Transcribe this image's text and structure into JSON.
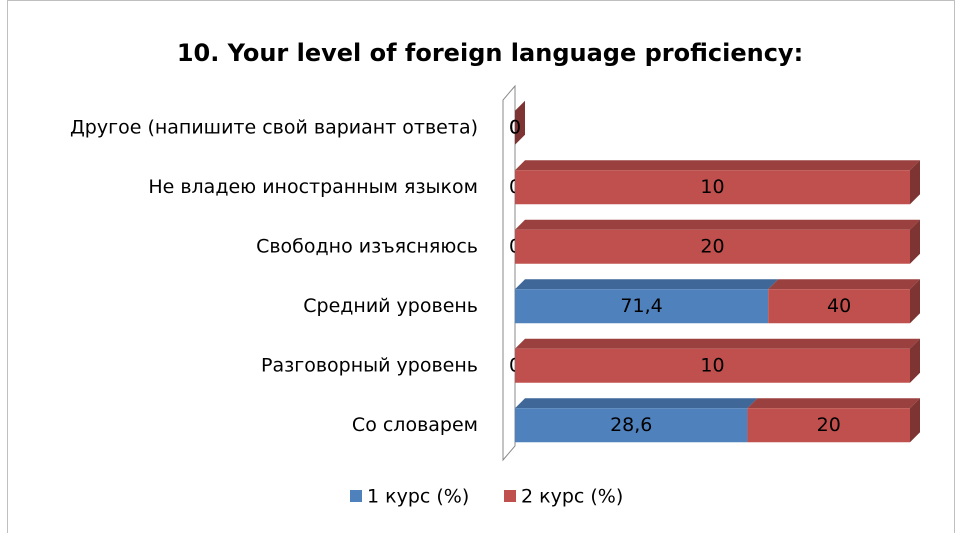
{
  "chart_data": {
    "type": "bar",
    "orientation": "horizontal",
    "stacked_percent": true,
    "three_d": true,
    "title": "10. Your level of foreign language proficiency:",
    "categories": [
      "Другое (напишите свой вариант ответа)",
      "Не владею иностранным языком",
      "Свободно изъясняюсь",
      "Средний уровень",
      "Разговорный уровень",
      "Со словарем"
    ],
    "series": [
      {
        "name": "1 курс (%)",
        "color": "#4f81bd",
        "values": [
          0,
          0,
          0,
          71.4,
          0,
          28.6
        ],
        "value_labels": [
          "0",
          "0",
          "0",
          "71,4",
          "0",
          "28,6"
        ]
      },
      {
        "name": "2 курс (%)",
        "color": "#c0504d",
        "values": [
          0,
          10,
          20,
          40,
          10,
          20
        ]
      }
    ],
    "legend": "bottom"
  }
}
